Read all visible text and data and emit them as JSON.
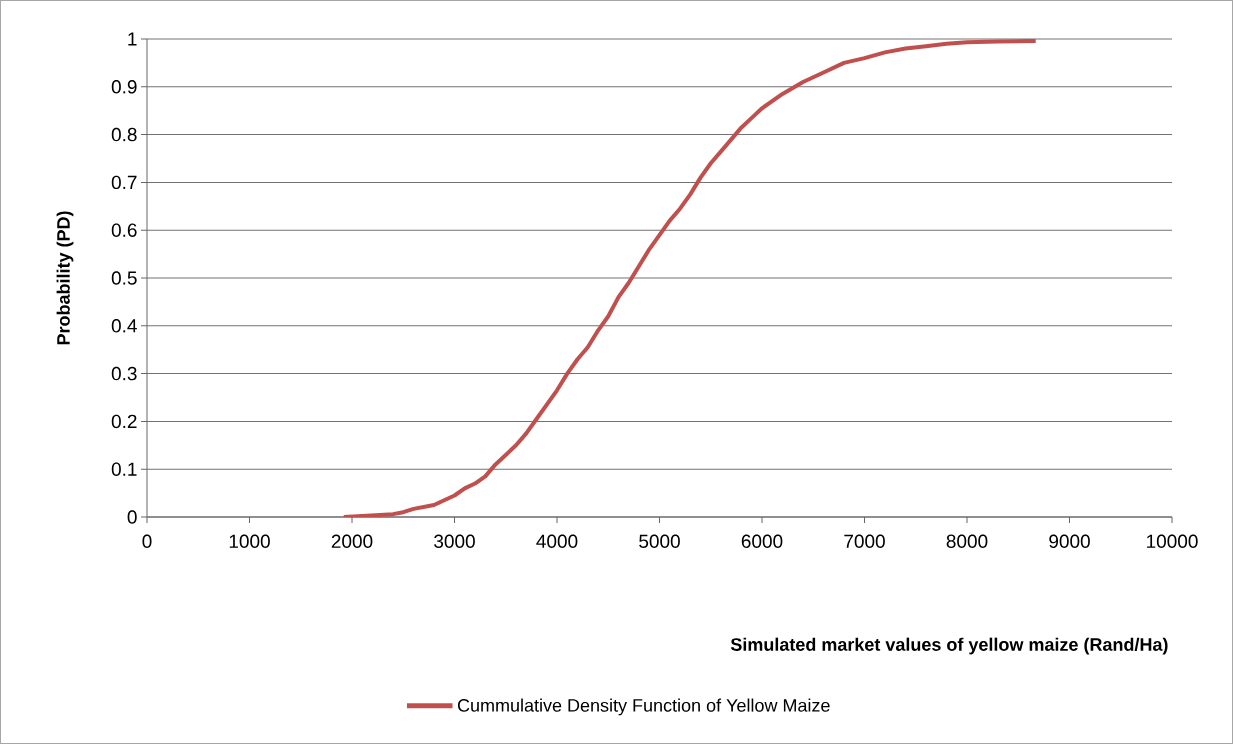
{
  "chart_data": {
    "type": "line",
    "xlabel": "Simulated market values of yellow maize (Rand/Ha)",
    "ylabel": "Probability (PD)",
    "xlim": [
      0,
      10000
    ],
    "ylim": [
      0,
      1
    ],
    "xticks": [
      0,
      1000,
      2000,
      3000,
      4000,
      5000,
      6000,
      7000,
      8000,
      9000,
      10000
    ],
    "yticks": [
      0,
      0.1,
      0.2,
      0.3,
      0.4,
      0.5,
      0.6,
      0.7,
      0.8,
      0.9,
      1
    ],
    "grid": "y",
    "legend": "bottom",
    "series": [
      {
        "name": "Cummulative Density Function of Yellow Maize",
        "color": "#c0504d",
        "x": [
          1920,
          2100,
          2400,
          2500,
          2600,
          2800,
          2900,
          3000,
          3100,
          3200,
          3300,
          3400,
          3500,
          3600,
          3700,
          3800,
          3900,
          4000,
          4100,
          4200,
          4300,
          4400,
          4500,
          4600,
          4700,
          4800,
          4900,
          5000,
          5100,
          5200,
          5300,
          5400,
          5500,
          5600,
          5700,
          5800,
          5900,
          6000,
          6200,
          6400,
          6600,
          6800,
          7000,
          7200,
          7400,
          7600,
          7800,
          8000,
          8300,
          8670
        ],
        "values": [
          0,
          0.002,
          0.006,
          0.01,
          0.017,
          0.025,
          0.035,
          0.045,
          0.06,
          0.07,
          0.085,
          0.11,
          0.13,
          0.15,
          0.175,
          0.205,
          0.235,
          0.265,
          0.3,
          0.33,
          0.355,
          0.39,
          0.42,
          0.46,
          0.49,
          0.525,
          0.56,
          0.59,
          0.62,
          0.645,
          0.675,
          0.71,
          0.74,
          0.765,
          0.79,
          0.815,
          0.835,
          0.855,
          0.885,
          0.91,
          0.93,
          0.95,
          0.96,
          0.972,
          0.98,
          0.985,
          0.99,
          0.993,
          0.995,
          0.996
        ]
      }
    ]
  }
}
